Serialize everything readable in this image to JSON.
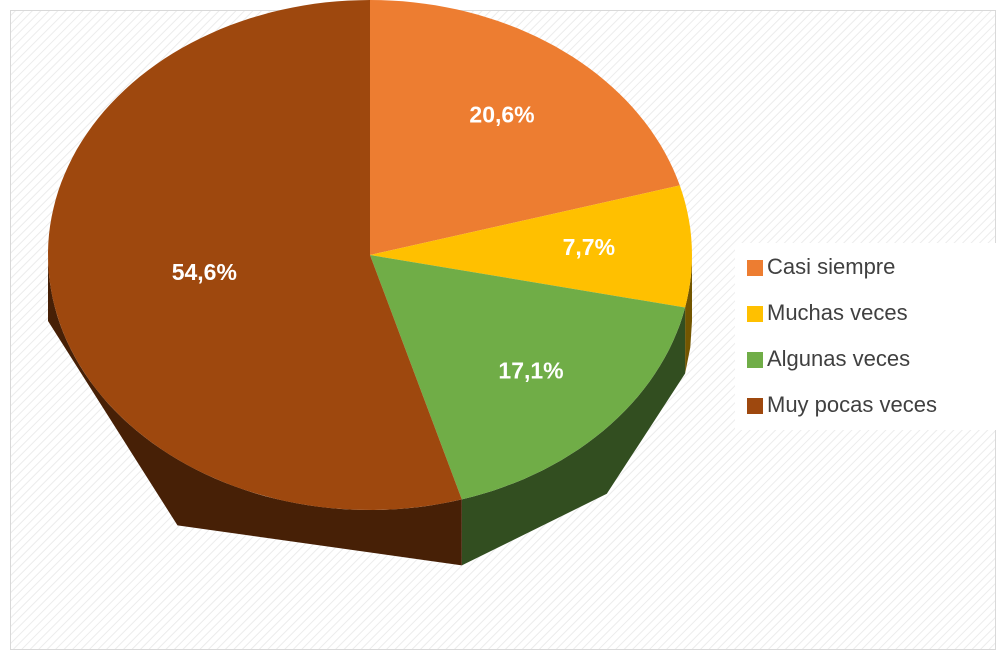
{
  "chart_data": {
    "type": "pie",
    "categories": [
      "Casi siempre",
      "Muchas veces",
      "Algunas veces",
      "Muy pocas veces"
    ],
    "values": [
      20.6,
      7.7,
      17.1,
      54.6
    ],
    "value_labels": [
      "20,6%",
      "7,7%",
      "17,1%",
      "54,6%"
    ],
    "colors": [
      "#ED7D31",
      "#FFC000",
      "#70AD47",
      "#9E480E"
    ],
    "legend": "right"
  }
}
